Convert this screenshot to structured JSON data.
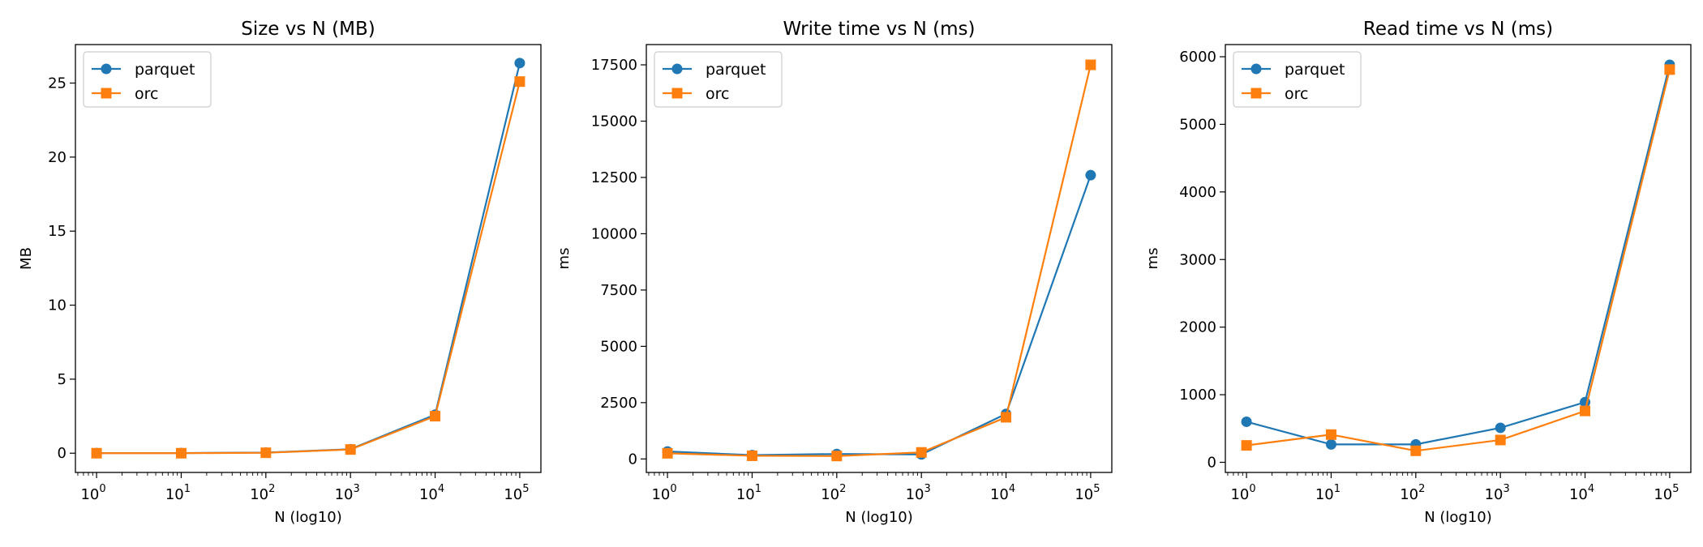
{
  "chart_data": [
    {
      "type": "line",
      "title": "Size vs N (MB)",
      "xlabel": "N (log10)",
      "ylabel": "MB",
      "xscale": "log",
      "x": [
        1,
        10,
        100,
        1000,
        10000,
        100000
      ],
      "xticks": [
        {
          "base": "10",
          "exp": "0"
        },
        {
          "base": "10",
          "exp": "1"
        },
        {
          "base": "10",
          "exp": "2"
        },
        {
          "base": "10",
          "exp": "3"
        },
        {
          "base": "10",
          "exp": "4"
        },
        {
          "base": "10",
          "exp": "5"
        }
      ],
      "ylim": [
        -1.3,
        27.6
      ],
      "yticks": [
        "0",
        "5",
        "10",
        "15",
        "20",
        "25"
      ],
      "legend": "top-left",
      "grid": false,
      "series": [
        {
          "name": "parquet",
          "marker": "circle",
          "color": "#1f77b4",
          "values": [
            0.01,
            0.01,
            0.04,
            0.27,
            2.6,
            26.35
          ]
        },
        {
          "name": "orc",
          "marker": "square",
          "color": "#ff7f0e",
          "values": [
            0.0,
            0.0,
            0.03,
            0.25,
            2.5,
            25.1
          ]
        }
      ]
    },
    {
      "type": "line",
      "title": "Write time vs N (ms)",
      "xlabel": "N (log10)",
      "ylabel": "ms",
      "xscale": "log",
      "x": [
        1,
        10,
        100,
        1000,
        10000,
        100000
      ],
      "xticks": [
        {
          "base": "10",
          "exp": "0"
        },
        {
          "base": "10",
          "exp": "1"
        },
        {
          "base": "10",
          "exp": "2"
        },
        {
          "base": "10",
          "exp": "3"
        },
        {
          "base": "10",
          "exp": "4"
        },
        {
          "base": "10",
          "exp": "5"
        }
      ],
      "ylim": [
        -600,
        18400
      ],
      "yticks": [
        "0",
        "2500",
        "5000",
        "7500",
        "10000",
        "12500",
        "15000",
        "17500"
      ],
      "legend": "top-left",
      "grid": false,
      "series": [
        {
          "name": "parquet",
          "marker": "circle",
          "color": "#1f77b4",
          "values": [
            330,
            170,
            220,
            200,
            2000,
            12600
          ]
        },
        {
          "name": "orc",
          "marker": "square",
          "color": "#ff7f0e",
          "values": [
            250,
            140,
            130,
            290,
            1850,
            17500
          ]
        }
      ]
    },
    {
      "type": "line",
      "title": "Read time vs N (ms)",
      "xlabel": "N (log10)",
      "ylabel": "ms",
      "xscale": "log",
      "x": [
        1,
        10,
        100,
        1000,
        10000,
        100000
      ],
      "xticks": [
        {
          "base": "10",
          "exp": "0"
        },
        {
          "base": "10",
          "exp": "1"
        },
        {
          "base": "10",
          "exp": "2"
        },
        {
          "base": "10",
          "exp": "3"
        },
        {
          "base": "10",
          "exp": "4"
        },
        {
          "base": "10",
          "exp": "5"
        }
      ],
      "ylim": [
        -150,
        6180
      ],
      "yticks": [
        "0",
        "1000",
        "2000",
        "3000",
        "4000",
        "5000",
        "6000"
      ],
      "legend": "top-left",
      "grid": false,
      "series": [
        {
          "name": "parquet",
          "marker": "circle",
          "color": "#1f77b4",
          "values": [
            600,
            265,
            265,
            510,
            890,
            5880
          ]
        },
        {
          "name": "orc",
          "marker": "square",
          "color": "#ff7f0e",
          "values": [
            250,
            410,
            170,
            330,
            760,
            5810
          ]
        }
      ]
    }
  ]
}
